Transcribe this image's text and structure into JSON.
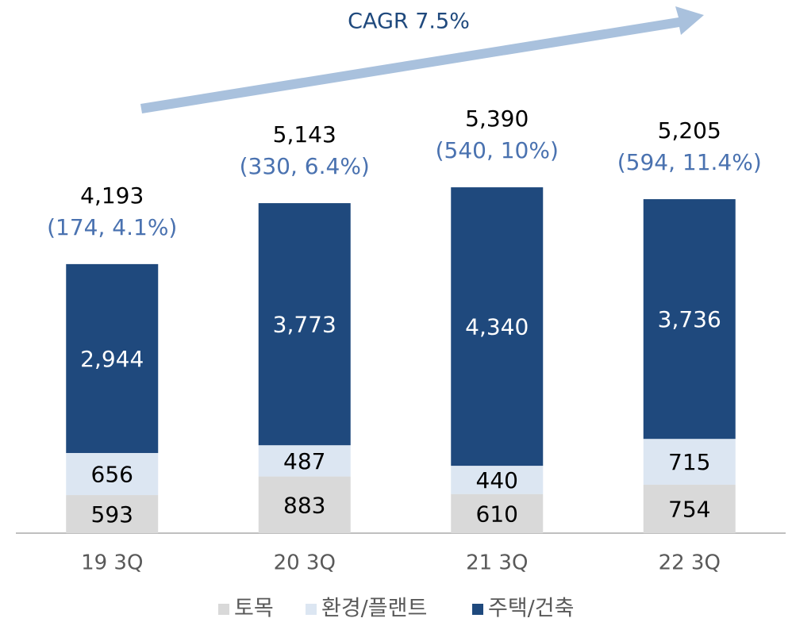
{
  "chart_data": {
    "type": "stacked_bar",
    "annotation": "CAGR 7.5%",
    "categories": [
      "19 3Q",
      "20 3Q",
      "21 3Q",
      "22 3Q"
    ],
    "series": [
      {
        "name": "토목",
        "color": "#d9d9d9",
        "values": [
          593,
          883,
          610,
          754
        ],
        "value_labels": [
          "593",
          "883",
          "610",
          "754"
        ]
      },
      {
        "name": "환경/플랜트",
        "color": "#dce6f2",
        "values": [
          656,
          487,
          440,
          715
        ],
        "value_labels": [
          "656",
          "487",
          "440",
          "715"
        ]
      },
      {
        "name": "주택/건축",
        "color": "#1f497d",
        "values": [
          2944,
          3773,
          4340,
          3736
        ],
        "value_labels": [
          "2,944",
          "3,773",
          "4,340",
          "3,736"
        ]
      }
    ],
    "totals": [
      4193,
      5143,
      5390,
      5205
    ],
    "total_labels": [
      "4,193",
      "5,143",
      "5,390",
      "5,205"
    ],
    "growth_labels": [
      "(174, 4.1%)",
      "(330, 6.4%)",
      "(540, 10%)",
      "(594, 11.4%)"
    ],
    "ylim": [
      0,
      8000
    ]
  }
}
